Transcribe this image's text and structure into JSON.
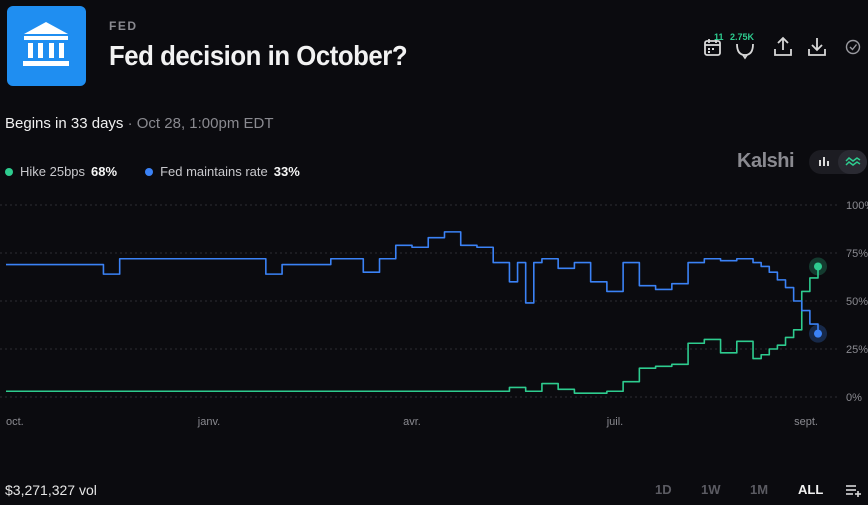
{
  "header": {
    "category": "FED",
    "title": "Fed decision in October?",
    "logo_icon": "bank-building-icon"
  },
  "toolbar": {
    "calendar_badge": "11",
    "comments_badge": "2.75K",
    "icons": [
      "calendar-icon",
      "comments-icon",
      "share-icon",
      "download-icon",
      "check-circle-icon"
    ]
  },
  "schedule": {
    "begins": "Begins in 33 days",
    "separator": " · ",
    "date": "Oct 28, 1:00pm EDT"
  },
  "legend": [
    {
      "name": "Hike 25bps",
      "value": "68%",
      "color": "#2ecc8f"
    },
    {
      "name": "Fed maintains rate",
      "value": "33%",
      "color": "#3b82f6"
    }
  ],
  "brand": "Kalshi",
  "view_toggle": {
    "icons": [
      "bar-chart-icon",
      "line-chart-icon"
    ],
    "active": "line-chart-icon"
  },
  "chart_data": {
    "type": "line",
    "ylim": [
      0,
      100
    ],
    "y_ticks": [
      "100%",
      "75%",
      "50%",
      "25%",
      "0%"
    ],
    "x_ticks": [
      "oct.",
      "janv.",
      "avr.",
      "juil.",
      "sept."
    ],
    "grid": "dotted horizontal",
    "series": [
      {
        "name": "Hike 25bps",
        "color": "#2ecc8f",
        "x": [
          0,
          20,
          40,
          60,
          62,
          64,
          66,
          68,
          70,
          72,
          74,
          76,
          78,
          80,
          82,
          84,
          86,
          88,
          90,
          92,
          93,
          94,
          95,
          96,
          97,
          98,
          99,
          100
        ],
        "y": [
          3,
          3,
          3,
          3,
          5,
          3,
          7,
          4,
          2,
          2,
          3,
          8,
          15,
          16,
          17,
          28,
          30,
          23,
          29,
          20,
          22,
          25,
          27,
          31,
          35,
          55,
          62,
          68
        ]
      },
      {
        "name": "Fed maintains rate",
        "color": "#3b82f6",
        "x": [
          0,
          10,
          12,
          14,
          30,
          32,
          34,
          40,
          42,
          44,
          46,
          48,
          50,
          52,
          54,
          56,
          58,
          60,
          62,
          63,
          64,
          65,
          66,
          68,
          70,
          72,
          74,
          76,
          78,
          80,
          82,
          84,
          86,
          88,
          90,
          92,
          93,
          94,
          95,
          96,
          97,
          98,
          99,
          100
        ],
        "y": [
          69,
          69,
          64,
          72,
          72,
          64,
          69,
          72,
          72,
          65,
          72,
          79,
          78,
          83,
          86,
          79,
          78,
          70,
          60,
          70,
          49,
          70,
          72,
          67,
          70,
          60,
          55,
          70,
          58,
          56,
          59,
          70,
          72,
          71,
          72,
          70,
          68,
          65,
          61,
          57,
          50,
          45,
          38,
          33
        ]
      }
    ]
  },
  "footer": {
    "volume": "$3,271,327 vol",
    "ranges": [
      "1D",
      "1W",
      "1M",
      "ALL"
    ],
    "active_range": "ALL",
    "menu_icon": "list-add-icon"
  }
}
